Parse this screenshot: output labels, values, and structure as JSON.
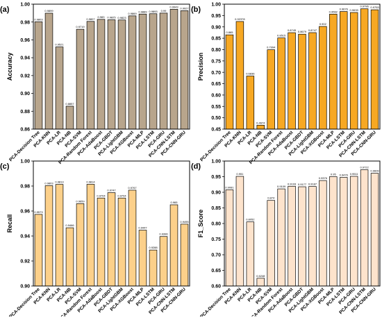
{
  "chart_data": [
    {
      "panel": "(a)",
      "type": "bar",
      "ylabel": "Accuracy",
      "ylim": [
        0.86,
        1.0
      ],
      "yticks": [
        "0.86",
        "0.88",
        "0.90",
        "0.92",
        "0.94",
        "0.96",
        "0.98",
        "1.00"
      ],
      "bar_color": "#b8a58c",
      "categories": [
        "PCA-Decision Tree",
        "PCA-KNN",
        "PCA-LR",
        "PCA-NB",
        "PCA-SVM",
        "PCA-Random Forest",
        "PCA-AdaBoost",
        "PCA-GBDT",
        "PCA-LightGBM",
        "PCA-XGBoost",
        "PCA-MLP",
        "PCA-LSTM",
        "PCA-GRU",
        "PCA-CNN-LSTM",
        "PCA-CNN-GRU"
      ],
      "values": [
        0.9803,
        0.9899,
        0.9521,
        0.8857,
        0.9719,
        0.9807,
        0.983,
        0.9825,
        0.9823,
        0.9869,
        0.9889,
        0.9893,
        0.99,
        0.9943,
        0.9927
      ],
      "labels": [
        "0.9803",
        "0.9899",
        "0.9521",
        "0.8857",
        "0.9719",
        "0.9807",
        "0.983",
        "0.9825",
        "0.9823",
        "0.9869",
        "0.9889",
        "0.9893",
        "0.99",
        "0.9943",
        "0.9927"
      ]
    },
    {
      "panel": "(b)",
      "type": "bar",
      "ylabel": "Precision",
      "ylim": [
        0.45,
        1.0
      ],
      "yticks": [
        "0.45",
        "0.50",
        "0.55",
        "0.60",
        "0.65",
        "0.70",
        "0.75",
        "0.80",
        "0.85",
        "0.90",
        "0.95",
        "1.00"
      ],
      "bar_color": "#f7a823",
      "categories": [
        "PCA-Decision Tree",
        "PCA-KNN",
        "PCA-LR",
        "PCA-NB",
        "PCA-SVM",
        "PCA-Random Forest",
        "PCA-AdaBoost",
        "PCA-GBDT",
        "PCA-LightGBM",
        "PCA-XGBoost",
        "PCA-MLP",
        "PCA-LSTM",
        "PCA-GRU",
        "PCA-CNN-LSTM",
        "PCA-CNN-GRU"
      ],
      "values": [
        0.865,
        0.92378,
        0.6836,
        0.4674,
        0.7994,
        0.8515,
        0.8745,
        0.8679,
        0.8747,
        0.902,
        0.9562,
        0.9676,
        0.9633,
        0.9796,
        0.9753
      ],
      "labels": [
        "0.865",
        "0.92378",
        "0.6836",
        "0.4674",
        "0.7994",
        "0.8515",
        "0.8745",
        "0.8679",
        "0.8747",
        "0.902",
        "0.9562",
        "0.9676",
        "0.9633",
        "0.9796",
        "0.9753"
      ]
    },
    {
      "panel": "(c)",
      "type": "bar",
      "ylabel": "Recall",
      "ylim": [
        0.9,
        1.0
      ],
      "yticks": [
        "0.90",
        "0.92",
        "0.94",
        "0.96",
        "0.98",
        "1.00"
      ],
      "bar_color": "#fcd08a",
      "categories": [
        "PCA-Decision Tree",
        "PCA-KNN",
        "PCA-LR",
        "PCA-NB",
        "PCA-SVM",
        "PCA-Random Forest",
        "PCA-AdaBoost",
        "PCA-GBDT",
        "PCA-LightGBM",
        "PCA-XGBoost",
        "PCA-MLP",
        "PCA-LSTM",
        "PCA-GRU",
        "PCA-CNN-LSTM",
        "PCA-CNN-GRU"
      ],
      "values": [
        0.9573,
        0.9803,
        0.9813,
        0.9466,
        0.9659,
        0.9814,
        0.9704,
        0.9747,
        0.9704,
        0.9767,
        0.9447,
        0.9288,
        0.9396,
        0.965,
        0.9495
      ],
      "labels": [
        "0.9573",
        "0.9803",
        "0.9813",
        "0.9466",
        "0.9659",
        "0.9814",
        "0.9704",
        "0.9747",
        "0.9704",
        "0.9767",
        "0.9447",
        "0.9288",
        "0.9396",
        "0.965",
        "0.9495"
      ]
    },
    {
      "panel": "(d)",
      "type": "bar",
      "ylabel": "F1_Score",
      "ylim": [
        0.6,
        1.0
      ],
      "yticks": [
        "0.60",
        "0.65",
        "0.70",
        "0.75",
        "0.80",
        "0.85",
        "0.90",
        "0.95",
        "1.00"
      ],
      "bar_color": "#fde3cc",
      "categories": [
        "PCA-Decision Tree",
        "PCA-KNN",
        "PCA-LR",
        "PCA-NB",
        "PCA-SVM",
        "PCA-Random Forest",
        "PCA-AdaBoost",
        "PCA-GBDT",
        "PCA-LightGBM",
        "PCA-XGBoost",
        "PCA-MLP",
        "PCA-LSTM",
        "PCA-GRU",
        "PCA-CNN-LSTM",
        "PCA-CNN-GRU"
      ],
      "values": [
        0.9081,
        0.951,
        0.8052,
        0.6248,
        0.874,
        0.9109,
        0.9193,
        0.9177,
        0.9187,
        0.9376,
        0.95,
        0.9476,
        0.9511,
        0.9722,
        0.9609
      ],
      "labels": [
        "0.9081",
        "0.951",
        "0.8052",
        "0.6248",
        "0.874",
        "0.9109",
        "0.9193",
        "0.9177",
        "0.9187",
        "0.9376",
        "0.95",
        "0.9476",
        "0.9511",
        "0.9722",
        "0.9609"
      ]
    }
  ]
}
